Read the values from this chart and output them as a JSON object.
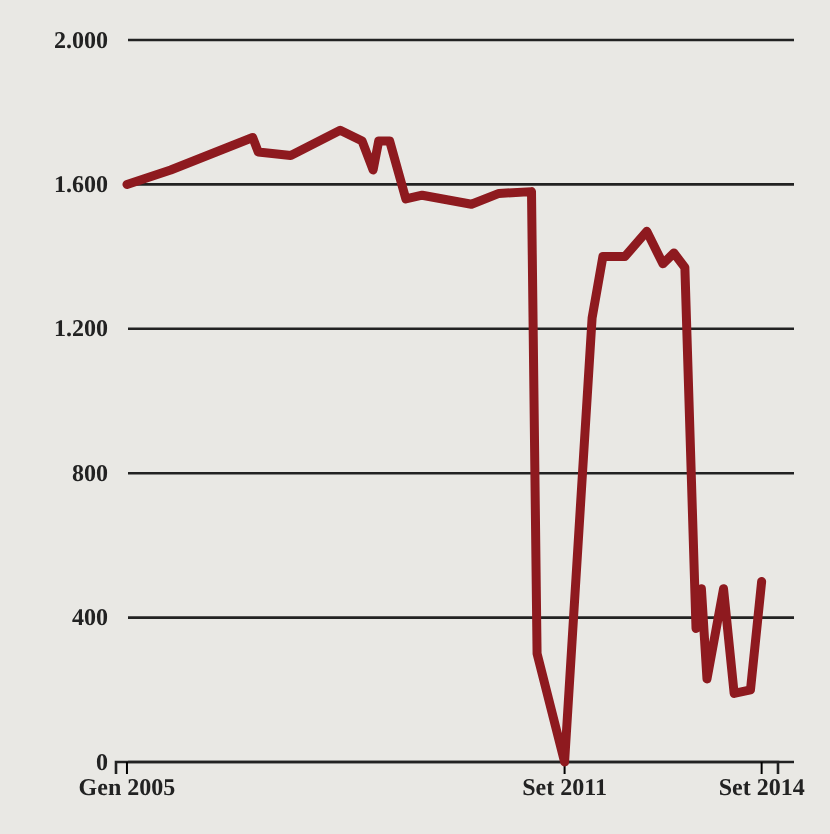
{
  "chart_data": {
    "type": "line",
    "x": [
      "2005-01",
      "2005-09",
      "2006-12",
      "2007-01",
      "2007-07",
      "2008-04",
      "2008-08",
      "2008-10",
      "2008-11",
      "2009-01",
      "2009-04",
      "2009-07",
      "2010-04",
      "2010-09",
      "2011-03",
      "2011-04",
      "2011-09",
      "2012-02",
      "2012-04",
      "2012-08",
      "2012-12",
      "2013-03",
      "2013-05",
      "2013-07",
      "2013-09",
      "2013-10",
      "2013-11",
      "2014-02",
      "2014-04",
      "2014-07",
      "2014-09"
    ],
    "series": [
      {
        "color": "#8e1a1f",
        "values": [
          1600,
          1640,
          1730,
          1690,
          1680,
          1750,
          1720,
          1640,
          1720,
          1720,
          1560,
          1570,
          1545,
          1575,
          1580,
          300,
          0,
          1230,
          1400,
          1400,
          1470,
          1380,
          1410,
          1370,
          370,
          480,
          230,
          480,
          190,
          200,
          500
        ]
      }
    ],
    "xlim": [
      "2004-11",
      "2014-12"
    ],
    "xticks": [
      {
        "value": "2005-01",
        "label": "Gen 2005"
      },
      {
        "value": "2011-09",
        "label": "Set 2011"
      },
      {
        "value": "2014-09",
        "label": "Set 2014"
      }
    ],
    "ylim": [
      0,
      2000
    ],
    "yticks": [
      {
        "value": 0,
        "label": "0"
      },
      {
        "value": 400,
        "label": "400"
      },
      {
        "value": 800,
        "label": "800"
      },
      {
        "value": 1200,
        "label": "1.200"
      },
      {
        "value": 1600,
        "label": "1.600"
      },
      {
        "value": 2000,
        "label": "2.000"
      }
    ],
    "grid": "y",
    "marker": "none",
    "line_style": "solid"
  }
}
